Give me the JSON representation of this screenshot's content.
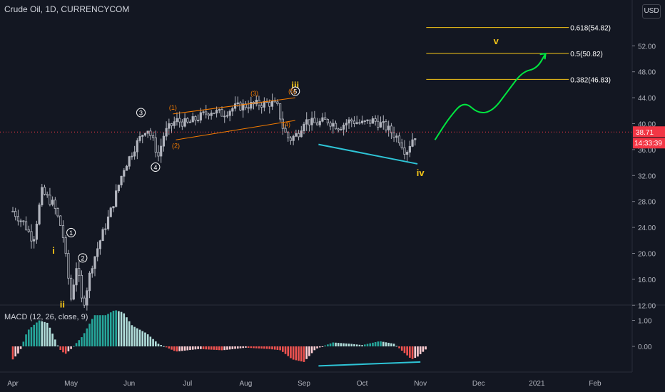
{
  "header": {
    "symbol": "Crude Oil, 1D, CURRENCYCOM",
    "currency_button": "USD"
  },
  "macd": {
    "label": "MACD (12, 26, close, 9)"
  },
  "price_axis": {
    "current_price": "38.71",
    "countdown": "14:33:39",
    "current_color": "#f23645"
  },
  "colors": {
    "up": "#26a69a",
    "down": "#ef5350",
    "candle": "#b2b5be",
    "fib": "#f5c518",
    "wave_orange": "#f57c00",
    "cyan": "#2ec4d6",
    "projection": "#00e640"
  },
  "chart_data": [
    {
      "type": "line",
      "title": "Crude Oil, 1D, CURRENCYCOM",
      "x_ticks": [
        "Apr",
        "May",
        "Jun",
        "Jul",
        "Aug",
        "Sep",
        "Oct",
        "Nov",
        "Dec",
        "2021",
        "Feb"
      ],
      "y_ticks": [
        12.0,
        16.0,
        20.0,
        24.0,
        28.0,
        32.0,
        36.0,
        40.0,
        44.0,
        48.0,
        52.0
      ],
      "ylim": [
        9.5,
        56
      ],
      "price_path": [
        {
          "t": 0.0,
          "v": 26.5
        },
        {
          "t": 0.2,
          "v": 24.5
        },
        {
          "t": 0.35,
          "v": 22.0
        },
        {
          "t": 0.5,
          "v": 29.5
        },
        {
          "t": 0.7,
          "v": 27.5
        },
        {
          "t": 0.85,
          "v": 23.5
        },
        {
          "t": 1.0,
          "v": 13.0
        },
        {
          "t": 1.1,
          "v": 18.5
        },
        {
          "t": 1.2,
          "v": 11.5
        },
        {
          "t": 1.35,
          "v": 18.0
        },
        {
          "t": 1.5,
          "v": 22.0
        },
        {
          "t": 1.7,
          "v": 27.0
        },
        {
          "t": 1.9,
          "v": 33.0
        },
        {
          "t": 2.1,
          "v": 36.5
        },
        {
          "t": 2.3,
          "v": 39.5
        },
        {
          "t": 2.4,
          "v": 37.5
        },
        {
          "t": 2.5,
          "v": 35.0
        },
        {
          "t": 2.6,
          "v": 38.5
        },
        {
          "t": 2.8,
          "v": 40.5
        },
        {
          "t": 3.0,
          "v": 40.0
        },
        {
          "t": 3.2,
          "v": 41.0
        },
        {
          "t": 3.4,
          "v": 42.0
        },
        {
          "t": 3.6,
          "v": 41.5
        },
        {
          "t": 3.8,
          "v": 42.5
        },
        {
          "t": 4.0,
          "v": 42.8
        },
        {
          "t": 4.2,
          "v": 43.0
        },
        {
          "t": 4.45,
          "v": 43.2
        },
        {
          "t": 4.55,
          "v": 42.5
        },
        {
          "t": 4.65,
          "v": 39.0
        },
        {
          "t": 4.75,
          "v": 37.5
        },
        {
          "t": 4.9,
          "v": 38.5
        },
        {
          "t": 5.0,
          "v": 40.5
        },
        {
          "t": 5.2,
          "v": 40.0
        },
        {
          "t": 5.4,
          "v": 40.5
        },
        {
          "t": 5.6,
          "v": 39.5
        },
        {
          "t": 5.8,
          "v": 40.5
        },
        {
          "t": 6.0,
          "v": 40.0
        },
        {
          "t": 6.2,
          "v": 40.5
        },
        {
          "t": 6.4,
          "v": 39.5
        },
        {
          "t": 6.65,
          "v": 37.5
        },
        {
          "t": 6.75,
          "v": 35.5
        },
        {
          "t": 6.85,
          "v": 37.5
        },
        {
          "t": 6.95,
          "v": 38.7
        }
      ],
      "fibonacci": [
        {
          "label": "0.618(54.82)",
          "value": 54.82
        },
        {
          "label": "0.5(50.82)",
          "value": 50.82
        },
        {
          "label": "0.382(46.83)",
          "value": 46.83
        }
      ],
      "current_price": 38.71,
      "wave_labels": [
        {
          "text": "i",
          "t": 0.7,
          "v": 20.5,
          "style": "yellow"
        },
        {
          "text": "ii",
          "t": 0.85,
          "v": 12.2,
          "style": "yellow"
        },
        {
          "text": "iii",
          "t": 4.85,
          "v": 46.0,
          "style": "yellow"
        },
        {
          "text": "iv",
          "t": 7.0,
          "v": 32.5,
          "style": "yellow"
        },
        {
          "text": "v",
          "t": 8.3,
          "v": 52.8,
          "style": "yellow"
        },
        {
          "text": "1",
          "t": 1.0,
          "v": 23.2,
          "style": "circle"
        },
        {
          "text": "2",
          "t": 1.2,
          "v": 19.3,
          "style": "circle"
        },
        {
          "text": "3",
          "t": 2.2,
          "v": 41.7,
          "style": "circle"
        },
        {
          "text": "4",
          "t": 2.45,
          "v": 33.3,
          "style": "circle"
        },
        {
          "text": "5",
          "t": 4.85,
          "v": 45.0,
          "style": "circle"
        },
        {
          "text": "(1)",
          "t": 2.75,
          "v": 42.6,
          "style": "orange"
        },
        {
          "text": "(2)",
          "t": 2.8,
          "v": 36.7,
          "style": "orange"
        },
        {
          "text": "(3)",
          "t": 4.15,
          "v": 44.8,
          "style": "orange"
        },
        {
          "text": "(4)",
          "t": 4.7,
          "v": 40.0,
          "style": "orange"
        },
        {
          "text": "(5)",
          "t": 4.8,
          "v": 45.1,
          "style": "orange"
        }
      ],
      "channel_upper": [
        {
          "t": 2.75,
          "v": 41.5
        },
        {
          "t": 4.85,
          "v": 44.0
        }
      ],
      "channel_lower": [
        {
          "t": 2.8,
          "v": 37.5
        },
        {
          "t": 4.85,
          "v": 40.5
        }
      ],
      "support_line": [
        {
          "t": 5.25,
          "v": 36.8
        },
        {
          "t": 6.95,
          "v": 33.8
        }
      ],
      "projection": [
        {
          "t": 7.25,
          "v": 37.5
        },
        {
          "t": 7.5,
          "v": 41.0
        },
        {
          "t": 7.75,
          "v": 43.5
        },
        {
          "t": 8.0,
          "v": 41.5
        },
        {
          "t": 8.25,
          "v": 42.0
        },
        {
          "t": 8.5,
          "v": 45.0
        },
        {
          "t": 8.75,
          "v": 48.0
        },
        {
          "t": 9.0,
          "v": 48.5
        },
        {
          "t": 9.15,
          "v": 50.8
        }
      ]
    },
    {
      "type": "bar",
      "title": "MACD (12, 26, close, 9)",
      "y_ticks": [
        1.0,
        0.0
      ],
      "ylim": [
        -0.8,
        1.6
      ],
      "x_ticks": [
        "Apr",
        "May",
        "Jun",
        "Jul",
        "Aug",
        "Sep",
        "Oct",
        "Nov",
        "Dec",
        "2021",
        "Feb"
      ],
      "histogram_path": [
        {
          "t": 0.0,
          "v": -0.5
        },
        {
          "t": 0.12,
          "v": -0.2
        },
        {
          "t": 0.25,
          "v": 0.6
        },
        {
          "t": 0.45,
          "v": 1.0
        },
        {
          "t": 0.6,
          "v": 0.9
        },
        {
          "t": 0.7,
          "v": 0.4
        },
        {
          "t": 0.8,
          "v": -0.1
        },
        {
          "t": 0.9,
          "v": -0.3
        },
        {
          "t": 1.0,
          "v": -0.1
        },
        {
          "t": 1.2,
          "v": 0.4
        },
        {
          "t": 1.4,
          "v": 1.2
        },
        {
          "t": 1.6,
          "v": 1.2
        },
        {
          "t": 1.75,
          "v": 1.4
        },
        {
          "t": 1.9,
          "v": 1.3
        },
        {
          "t": 2.05,
          "v": 0.8
        },
        {
          "t": 2.3,
          "v": 0.5
        },
        {
          "t": 2.5,
          "v": 0.1
        },
        {
          "t": 2.8,
          "v": -0.2
        },
        {
          "t": 3.2,
          "v": -0.1
        },
        {
          "t": 3.6,
          "v": -0.15
        },
        {
          "t": 4.0,
          "v": -0.05
        },
        {
          "t": 4.4,
          "v": -0.1
        },
        {
          "t": 4.6,
          "v": -0.15
        },
        {
          "t": 4.8,
          "v": -0.5
        },
        {
          "t": 5.0,
          "v": -0.6
        },
        {
          "t": 5.2,
          "v": -0.1
        },
        {
          "t": 5.5,
          "v": 0.15
        },
        {
          "t": 5.8,
          "v": 0.1
        },
        {
          "t": 6.0,
          "v": 0.05
        },
        {
          "t": 6.3,
          "v": 0.2
        },
        {
          "t": 6.55,
          "v": 0.1
        },
        {
          "t": 6.7,
          "v": -0.2
        },
        {
          "t": 6.85,
          "v": -0.5
        },
        {
          "t": 6.95,
          "v": -0.4
        },
        {
          "t": 7.1,
          "v": -0.1
        }
      ],
      "divergence_line": [
        {
          "t": 5.25,
          "v": -0.75
        },
        {
          "t": 7.0,
          "v": -0.6
        }
      ]
    }
  ]
}
